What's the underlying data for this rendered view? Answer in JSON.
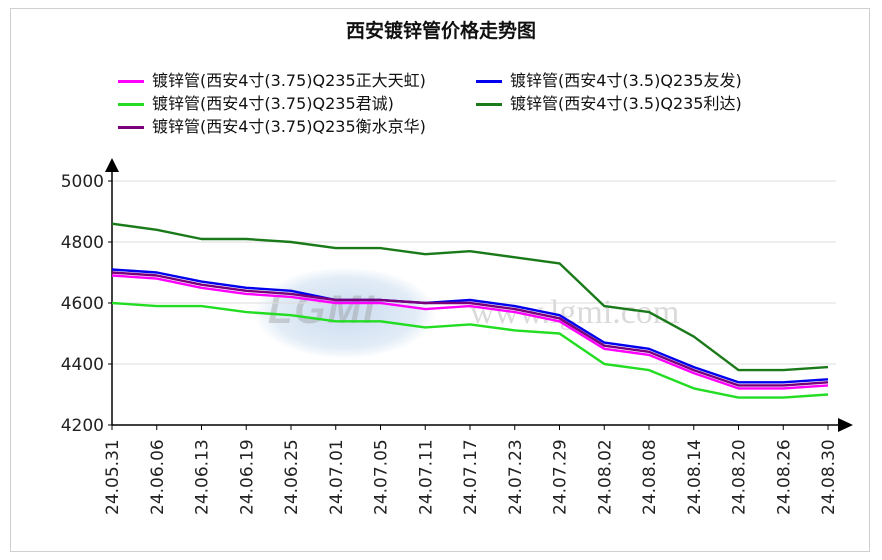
{
  "chart_data": {
    "type": "line",
    "title": "西安镀锌管价格走势图",
    "xlabel": "",
    "ylabel": "",
    "ylim": [
      4200,
      5000
    ],
    "yticks": [
      4200,
      4400,
      4600,
      4800,
      5000
    ],
    "x_tick_labels": [
      "24.05.31",
      "24.06.06",
      "24.06.13",
      "24.06.19",
      "24.06.25",
      "24.07.01",
      "24.07.05",
      "24.07.11",
      "24.07.17",
      "24.07.23",
      "24.07.29",
      "24.08.02",
      "24.08.08",
      "24.08.14",
      "24.08.20",
      "24.08.26",
      "24.08.30"
    ],
    "grid": true,
    "legend_position": "top",
    "series": [
      {
        "name": "镀锌管(西安4寸(3.75)Q235正大天虹)",
        "color": "#ff00ff",
        "x": [
          "24.05.31",
          "24.06.06",
          "24.06.13",
          "24.06.19",
          "24.06.25",
          "24.07.01",
          "24.07.05",
          "24.07.11",
          "24.07.17",
          "24.07.23",
          "24.07.29",
          "24.08.02",
          "24.08.08",
          "24.08.14",
          "24.08.20",
          "24.08.26",
          "24.08.30"
        ],
        "values": [
          4690,
          4680,
          4650,
          4630,
          4620,
          4600,
          4600,
          4580,
          4590,
          4570,
          4540,
          4450,
          4430,
          4370,
          4320,
          4320,
          4330
        ]
      },
      {
        "name": "镀锌管(西安4寸(3.5)Q235友发)",
        "color": "#0000ee",
        "x": [
          "24.05.31",
          "24.06.06",
          "24.06.13",
          "24.06.19",
          "24.06.25",
          "24.07.01",
          "24.07.05",
          "24.07.11",
          "24.07.17",
          "24.07.23",
          "24.07.29",
          "24.08.02",
          "24.08.08",
          "24.08.14",
          "24.08.20",
          "24.08.26",
          "24.08.30"
        ],
        "values": [
          4710,
          4700,
          4670,
          4650,
          4640,
          4610,
          4610,
          4600,
          4610,
          4590,
          4560,
          4470,
          4450,
          4390,
          4340,
          4340,
          4350
        ]
      },
      {
        "name": "镀锌管(西安4寸(3.75)Q235君诚)",
        "color": "#22dd22",
        "x": [
          "24.05.31",
          "24.06.06",
          "24.06.13",
          "24.06.19",
          "24.06.25",
          "24.07.01",
          "24.07.05",
          "24.07.11",
          "24.07.17",
          "24.07.23",
          "24.07.29",
          "24.08.02",
          "24.08.08",
          "24.08.14",
          "24.08.20",
          "24.08.26",
          "24.08.30"
        ],
        "values": [
          4600,
          4590,
          4590,
          4570,
          4560,
          4540,
          4540,
          4520,
          4530,
          4510,
          4500,
          4400,
          4380,
          4320,
          4290,
          4290,
          4300
        ]
      },
      {
        "name": "镀锌管(西安4寸(3.5)Q235利达)",
        "color": "#1a7a1a",
        "x": [
          "24.05.31",
          "24.06.06",
          "24.06.13",
          "24.06.19",
          "24.06.25",
          "24.07.01",
          "24.07.05",
          "24.07.11",
          "24.07.17",
          "24.07.23",
          "24.07.29",
          "24.08.02",
          "24.08.08",
          "24.08.14",
          "24.08.20",
          "24.08.26",
          "24.08.30"
        ],
        "values": [
          4860,
          4840,
          4810,
          4810,
          4800,
          4780,
          4780,
          4760,
          4770,
          4750,
          4730,
          4590,
          4570,
          4490,
          4380,
          4380,
          4390
        ]
      },
      {
        "name": "镀锌管(西安4寸(3.75)Q235衡水京华)",
        "color": "#7a007a",
        "x": [
          "24.05.31",
          "24.06.06",
          "24.06.13",
          "24.06.19",
          "24.06.25",
          "24.07.01",
          "24.07.05",
          "24.07.11",
          "24.07.17",
          "24.07.23",
          "24.07.29",
          "24.08.02",
          "24.08.08",
          "24.08.14",
          "24.08.20",
          "24.08.26",
          "24.08.30"
        ],
        "values": [
          4700,
          4690,
          4660,
          4640,
          4630,
          4610,
          4610,
          4600,
          4600,
          4580,
          4550,
          4460,
          4440,
          4380,
          4330,
          4330,
          4340
        ]
      }
    ]
  },
  "watermark": {
    "logo_text": "LGMI",
    "url_text": "www.lgmi.com"
  }
}
